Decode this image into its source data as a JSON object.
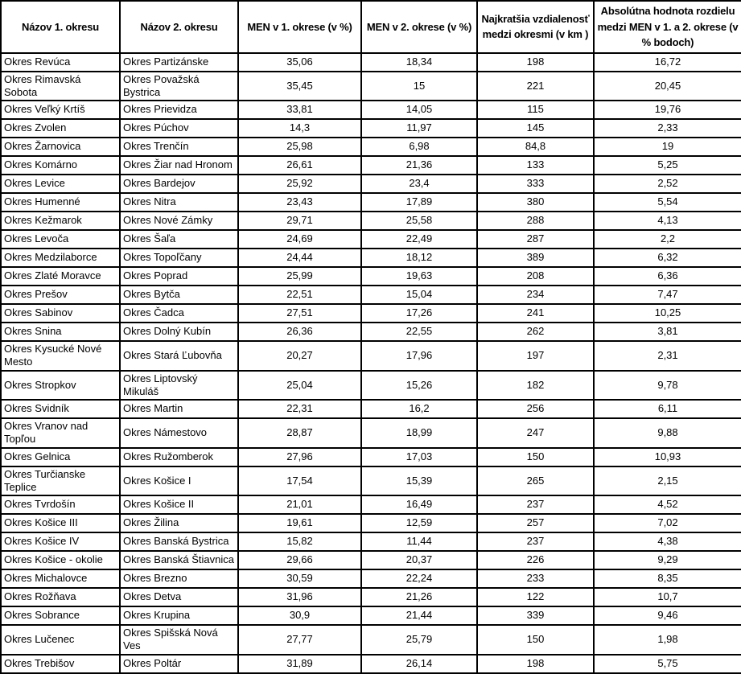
{
  "table": {
    "headers": [
      "Názov 1. okresu",
      "Názov 2. okresu",
      "MEN v 1. okrese (v %)",
      "MEN v 2. okrese (v %)",
      "Najkratšia vzdialenosť medzi okresmi (v km )",
      "Absolútna hodnota rozdielu medzi MEN v 1. a 2. okrese (v % bodoch)"
    ],
    "rows": [
      [
        "Okres Revúca",
        "Okres Partizánske",
        "35,06",
        "18,34",
        "198",
        "16,72"
      ],
      [
        "Okres Rimavská Sobota",
        "Okres Považská Bystrica",
        "35,45",
        "15",
        "221",
        "20,45"
      ],
      [
        "Okres Veľký Krtíš",
        "Okres Prievidza",
        "33,81",
        "14,05",
        "115",
        "19,76"
      ],
      [
        "Okres Zvolen",
        "Okres Púchov",
        "14,3",
        "11,97",
        "145",
        "2,33"
      ],
      [
        "Okres Žarnovica",
        "Okres Trenčín",
        "25,98",
        "6,98",
        "84,8",
        "19"
      ],
      [
        "Okres Komárno",
        "Okres Žiar nad Hronom",
        "26,61",
        "21,36",
        "133",
        "5,25"
      ],
      [
        "Okres Levice",
        "Okres Bardejov",
        "25,92",
        "23,4",
        "333",
        "2,52"
      ],
      [
        "Okres Humenné",
        "Okres Nitra",
        "23,43",
        "17,89",
        "380",
        "5,54"
      ],
      [
        "Okres Kežmarok",
        "Okres Nové Zámky",
        "29,71",
        "25,58",
        "288",
        "4,13"
      ],
      [
        "Okres Levoča",
        "Okres Šaľa",
        "24,69",
        "22,49",
        "287",
        "2,2"
      ],
      [
        "Okres Medzilaborce",
        "Okres Topoľčany",
        "24,44",
        "18,12",
        "389",
        "6,32"
      ],
      [
        "Okres Zlaté Moravce",
        "Okres Poprad",
        "25,99",
        "19,63",
        "208",
        "6,36"
      ],
      [
        "Okres Prešov",
        "Okres Bytča",
        "22,51",
        "15,04",
        "234",
        "7,47"
      ],
      [
        "Okres Sabinov",
        "Okres Čadca",
        "27,51",
        "17,26",
        "241",
        "10,25"
      ],
      [
        "Okres Snina",
        "Okres Dolný Kubín",
        "26,36",
        "22,55",
        "262",
        "3,81"
      ],
      [
        "Okres Kysucké Nové Mesto",
        "Okres Stará Ľubovňa",
        "20,27",
        "17,96",
        "197",
        "2,31"
      ],
      [
        "Okres Stropkov",
        "Okres Liptovský Mikuláš",
        "25,04",
        "15,26",
        "182",
        "9,78"
      ],
      [
        "Okres Svidník",
        "Okres Martin",
        "22,31",
        "16,2",
        "256",
        "6,11"
      ],
      [
        "Okres Vranov nad Topľou",
        "Okres Námestovo",
        "28,87",
        "18,99",
        "247",
        "9,88"
      ],
      [
        "Okres Gelnica",
        "Okres Ružomberok",
        "27,96",
        "17,03",
        "150",
        "10,93"
      ],
      [
        "Okres Turčianske Teplice",
        "Okres Košice I",
        "17,54",
        "15,39",
        "265",
        "2,15"
      ],
      [
        "Okres Tvrdošín",
        "Okres Košice II",
        "21,01",
        "16,49",
        "237",
        "4,52"
      ],
      [
        "Okres Košice III",
        "Okres Žilina",
        "19,61",
        "12,59",
        "257",
        "7,02"
      ],
      [
        "Okres Košice IV",
        "Okres Banská Bystrica",
        "15,82",
        "11,44",
        "237",
        "4,38"
      ],
      [
        "Okres Košice - okolie",
        "Okres Banská Štiavnica",
        "29,66",
        "20,37",
        "226",
        "9,29"
      ],
      [
        "Okres Michalovce",
        "Okres Brezno",
        "30,59",
        "22,24",
        "233",
        "8,35"
      ],
      [
        "Okres Rožňava",
        "Okres Detva",
        "31,96",
        "21,26",
        "122",
        "10,7"
      ],
      [
        "Okres Sobrance",
        "Okres Krupina",
        "30,9",
        "21,44",
        "339",
        "9,46"
      ],
      [
        "Okres Lučenec",
        "Okres Spišská Nová Ves",
        "27,77",
        "25,79",
        "150",
        "1,98"
      ],
      [
        "Okres Trebišov",
        "Okres Poltár",
        "31,89",
        "26,14",
        "198",
        "5,75"
      ]
    ]
  }
}
